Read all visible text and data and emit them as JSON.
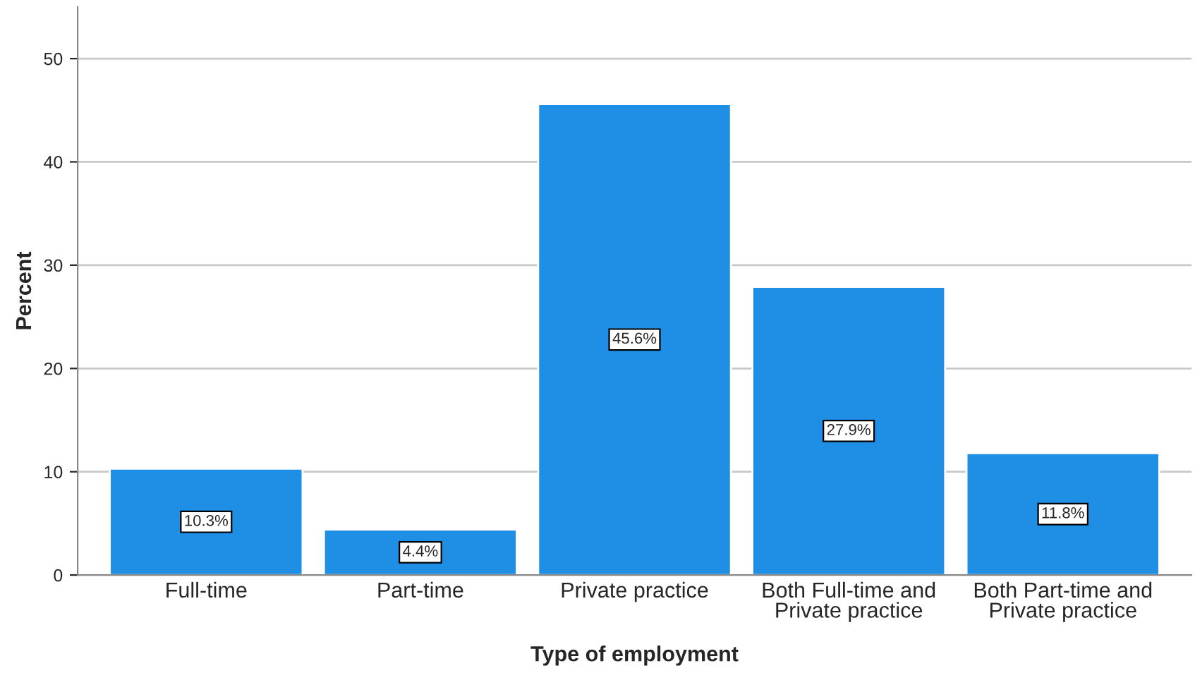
{
  "chart_data": {
    "type": "bar",
    "xlabel": "Type of employment",
    "ylabel": "Percent",
    "categories": [
      "Full-time",
      "Part-time",
      "Private practice",
      "Both Full-time and\nPrivate practice",
      "Both Part-time and\nPrivate practice"
    ],
    "values": [
      10.3,
      4.4,
      45.6,
      27.9,
      11.8
    ],
    "value_labels": [
      "10.3%",
      "4.4%",
      "45.6%",
      "27.9%",
      "11.8%"
    ],
    "color": "#1f8fe5",
    "ylim": [
      0,
      55
    ],
    "yticks": [
      0,
      10,
      20,
      30,
      40,
      50
    ],
    "grid": "y"
  }
}
